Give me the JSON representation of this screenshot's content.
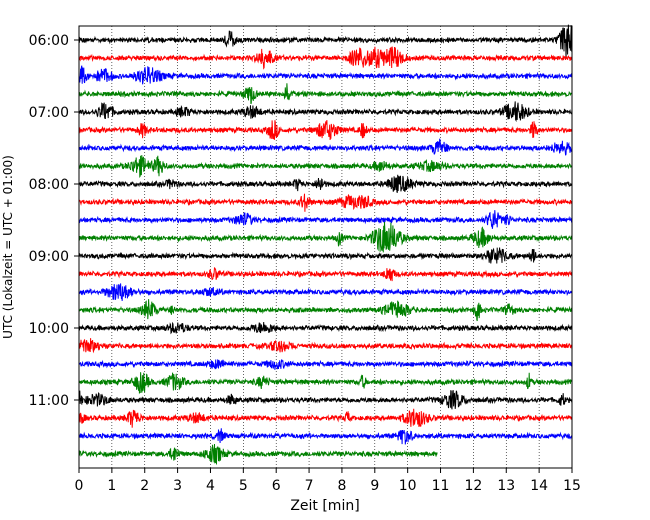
{
  "chart_data": {
    "type": "line",
    "title": "",
    "xlabel": "Zeit  [min]",
    "ylabel": "UTC (Lokalzeit = UTC + 01:00)",
    "xlim": [
      0,
      15
    ],
    "x_ticks": [
      0,
      1,
      2,
      3,
      4,
      5,
      6,
      7,
      8,
      9,
      10,
      11,
      12,
      13,
      14,
      15
    ],
    "x_tick_labels": [
      "0",
      "1",
      "2",
      "3",
      "4",
      "5",
      "6",
      "7",
      "8",
      "9",
      "10",
      "11",
      "12",
      "13",
      "14",
      "15"
    ],
    "y_tick_labels": [
      "06:00",
      "07:00",
      "08:00",
      "09:00",
      "10:00",
      "11:00"
    ],
    "grid": "vertical-dotted",
    "trace_interval_min": 15,
    "trace_colors": [
      "#000000",
      "#ff0000",
      "#0000ff",
      "#008000"
    ],
    "traces": [
      {
        "start": "06:00",
        "end_min": 15,
        "color": "#000000"
      },
      {
        "start": "06:15",
        "end_min": 15,
        "color": "#ff0000"
      },
      {
        "start": "06:30",
        "end_min": 15,
        "color": "#0000ff"
      },
      {
        "start": "06:45",
        "end_min": 15,
        "color": "#008000"
      },
      {
        "start": "07:00",
        "end_min": 15,
        "color": "#000000"
      },
      {
        "start": "07:15",
        "end_min": 15,
        "color": "#ff0000"
      },
      {
        "start": "07:30",
        "end_min": 15,
        "color": "#0000ff"
      },
      {
        "start": "07:45",
        "end_min": 15,
        "color": "#008000"
      },
      {
        "start": "08:00",
        "end_min": 15,
        "color": "#000000"
      },
      {
        "start": "08:15",
        "end_min": 15,
        "color": "#ff0000"
      },
      {
        "start": "08:30",
        "end_min": 15,
        "color": "#0000ff"
      },
      {
        "start": "08:45",
        "end_min": 15,
        "color": "#008000"
      },
      {
        "start": "09:00",
        "end_min": 15,
        "color": "#000000"
      },
      {
        "start": "09:15",
        "end_min": 15,
        "color": "#ff0000"
      },
      {
        "start": "09:30",
        "end_min": 15,
        "color": "#0000ff"
      },
      {
        "start": "09:45",
        "end_min": 15,
        "color": "#008000"
      },
      {
        "start": "10:00",
        "end_min": 15,
        "color": "#000000"
      },
      {
        "start": "10:15",
        "end_min": 15,
        "color": "#ff0000"
      },
      {
        "start": "10:30",
        "end_min": 15,
        "color": "#0000ff"
      },
      {
        "start": "10:45",
        "end_min": 15,
        "color": "#008000"
      },
      {
        "start": "11:00",
        "end_min": 15,
        "color": "#000000"
      },
      {
        "start": "11:15",
        "end_min": 15,
        "color": "#ff0000"
      },
      {
        "start": "11:30",
        "end_min": 15,
        "color": "#0000ff"
      },
      {
        "start": "11:45",
        "end_min": 10.9,
        "color": "#008000"
      }
    ]
  }
}
